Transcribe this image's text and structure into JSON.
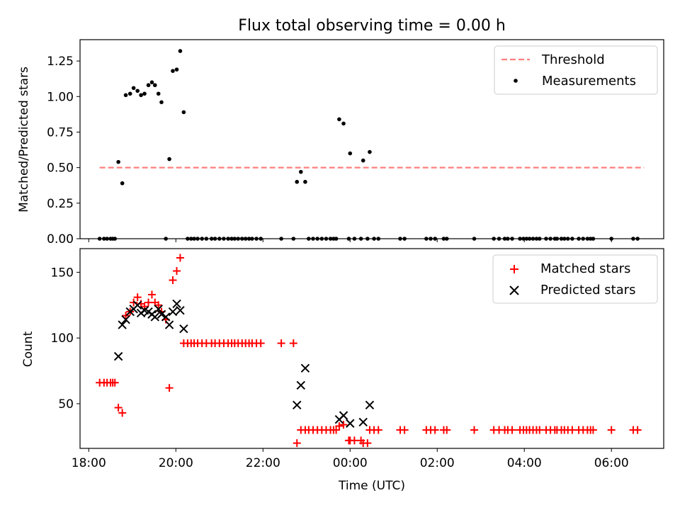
{
  "chart_data": [
    {
      "type": "scatter",
      "title": "Flux total observing time = 0.00 h",
      "xlabel": "",
      "ylabel": "Matched/Predicted stars",
      "x_unit": "hours (UTC, continuing past midnight)",
      "xlim": [
        17.8,
        31.2
      ],
      "ylim": [
        0,
        1.4
      ],
      "yticks": [
        0.0,
        0.25,
        0.5,
        0.75,
        1.0,
        1.25
      ],
      "ytick_labels": [
        "0.00",
        "0.25",
        "0.50",
        "0.75",
        "1.00",
        "1.25"
      ],
      "legend_position": "top-right",
      "series": [
        {
          "name": "Threshold",
          "kind": "line",
          "style": "dashed",
          "color": "#ff7f7f",
          "x": [
            18.25,
            30.75
          ],
          "y": [
            0.5,
            0.5
          ]
        },
        {
          "name": "Measurements",
          "kind": "scatter",
          "marker": "dot",
          "color": "#000000",
          "points": [
            [
              18.25,
              0
            ],
            [
              18.35,
              0
            ],
            [
              18.42,
              0
            ],
            [
              18.5,
              0
            ],
            [
              18.55,
              0
            ],
            [
              18.6,
              0
            ],
            [
              18.68,
              0.54
            ],
            [
              18.77,
              0.39
            ],
            [
              18.85,
              1.01
            ],
            [
              18.95,
              1.02
            ],
            [
              19.03,
              1.06
            ],
            [
              19.12,
              1.04
            ],
            [
              19.2,
              1.01
            ],
            [
              19.28,
              1.02
            ],
            [
              19.37,
              1.08
            ],
            [
              19.45,
              1.1
            ],
            [
              19.52,
              1.08
            ],
            [
              19.6,
              1.02
            ],
            [
              19.67,
              0.96
            ],
            [
              19.77,
              0
            ],
            [
              19.85,
              0.56
            ],
            [
              19.93,
              1.18
            ],
            [
              20.02,
              1.19
            ],
            [
              20.1,
              1.32
            ],
            [
              20.18,
              0.89
            ],
            [
              20.27,
              0
            ],
            [
              20.35,
              0
            ],
            [
              20.42,
              0
            ],
            [
              20.5,
              0
            ],
            [
              20.6,
              0
            ],
            [
              20.7,
              0
            ],
            [
              20.82,
              0
            ],
            [
              20.9,
              0
            ],
            [
              21.0,
              0
            ],
            [
              21.1,
              0
            ],
            [
              21.2,
              0
            ],
            [
              21.28,
              0
            ],
            [
              21.35,
              0
            ],
            [
              21.43,
              0
            ],
            [
              21.52,
              0
            ],
            [
              21.6,
              0
            ],
            [
              21.68,
              0
            ],
            [
              21.75,
              0
            ],
            [
              21.85,
              0
            ],
            [
              21.95,
              0
            ],
            [
              22.42,
              0
            ],
            [
              22.7,
              0
            ],
            [
              22.78,
              0.4
            ],
            [
              22.87,
              0.47
            ],
            [
              22.97,
              0.4
            ],
            [
              23.05,
              0
            ],
            [
              23.15,
              0
            ],
            [
              23.25,
              0
            ],
            [
              23.35,
              0
            ],
            [
              23.45,
              0
            ],
            [
              23.55,
              0
            ],
            [
              23.62,
              0
            ],
            [
              23.68,
              0
            ],
            [
              23.75,
              0.84
            ],
            [
              23.85,
              0.81
            ],
            [
              23.97,
              0
            ],
            [
              24.0,
              0.6
            ],
            [
              24.1,
              0
            ],
            [
              24.25,
              0
            ],
            [
              24.3,
              0.55
            ],
            [
              24.4,
              0
            ],
            [
              24.45,
              0.61
            ],
            [
              24.55,
              0
            ],
            [
              24.65,
              0
            ],
            [
              25.15,
              0
            ],
            [
              25.25,
              0
            ],
            [
              25.75,
              0
            ],
            [
              25.85,
              0
            ],
            [
              25.95,
              0
            ],
            [
              26.15,
              0
            ],
            [
              26.22,
              0
            ],
            [
              26.85,
              0
            ],
            [
              27.3,
              0
            ],
            [
              27.42,
              0
            ],
            [
              27.55,
              0
            ],
            [
              27.62,
              0
            ],
            [
              27.72,
              0
            ],
            [
              27.9,
              0
            ],
            [
              27.98,
              0
            ],
            [
              28.05,
              0
            ],
            [
              28.12,
              0
            ],
            [
              28.2,
              0
            ],
            [
              28.28,
              0
            ],
            [
              28.35,
              0
            ],
            [
              28.5,
              0
            ],
            [
              28.6,
              0
            ],
            [
              28.7,
              0
            ],
            [
              28.75,
              0
            ],
            [
              28.85,
              0
            ],
            [
              28.92,
              0
            ],
            [
              29.0,
              0
            ],
            [
              29.1,
              0
            ],
            [
              29.25,
              0
            ],
            [
              29.35,
              0
            ],
            [
              29.45,
              0
            ],
            [
              29.52,
              0
            ],
            [
              29.58,
              0
            ],
            [
              30.0,
              0
            ],
            [
              30.5,
              0
            ],
            [
              30.6,
              0
            ]
          ]
        }
      ]
    },
    {
      "type": "scatter",
      "title": "",
      "xlabel": "Time (UTC)",
      "ylabel": "Count",
      "xlim": [
        17.8,
        31.2
      ],
      "ylim": [
        16,
        168
      ],
      "xticks": [
        18,
        20,
        22,
        24,
        26,
        28,
        30
      ],
      "xtick_labels": [
        "18:00",
        "20:00",
        "22:00",
        "00:00",
        "02:00",
        "04:00",
        "06:00"
      ],
      "yticks": [
        50,
        100,
        150
      ],
      "ytick_labels": [
        "50",
        "100",
        "150"
      ],
      "legend_position": "top-right",
      "series": [
        {
          "name": "Matched stars",
          "kind": "scatter",
          "marker": "plus",
          "color": "#ff0000",
          "points": [
            [
              18.25,
              66
            ],
            [
              18.35,
              66
            ],
            [
              18.42,
              66
            ],
            [
              18.5,
              66
            ],
            [
              18.55,
              66
            ],
            [
              18.6,
              66
            ],
            [
              18.68,
              47
            ],
            [
              18.77,
              43
            ],
            [
              18.85,
              117
            ],
            [
              18.95,
              120
            ],
            [
              19.03,
              127
            ],
            [
              19.12,
              131
            ],
            [
              19.2,
              126
            ],
            [
              19.28,
              124
            ],
            [
              19.37,
              127
            ],
            [
              19.45,
              133
            ],
            [
              19.52,
              127
            ],
            [
              19.6,
              125
            ],
            [
              19.67,
              120
            ],
            [
              19.77,
              114
            ],
            [
              19.85,
              62
            ],
            [
              19.93,
              144
            ],
            [
              20.02,
              151
            ],
            [
              20.1,
              161
            ],
            [
              20.18,
              96
            ],
            [
              20.27,
              96
            ],
            [
              20.35,
              96
            ],
            [
              20.42,
              96
            ],
            [
              20.5,
              96
            ],
            [
              20.6,
              96
            ],
            [
              20.7,
              96
            ],
            [
              20.82,
              96
            ],
            [
              20.9,
              96
            ],
            [
              21.0,
              96
            ],
            [
              21.1,
              96
            ],
            [
              21.2,
              96
            ],
            [
              21.28,
              96
            ],
            [
              21.35,
              96
            ],
            [
              21.43,
              96
            ],
            [
              21.52,
              96
            ],
            [
              21.6,
              96
            ],
            [
              21.68,
              96
            ],
            [
              21.75,
              96
            ],
            [
              21.85,
              96
            ],
            [
              21.95,
              96
            ],
            [
              22.42,
              96
            ],
            [
              22.7,
              96
            ],
            [
              22.78,
              20
            ],
            [
              22.87,
              30
            ],
            [
              22.97,
              30
            ],
            [
              23.05,
              30
            ],
            [
              23.15,
              30
            ],
            [
              23.25,
              30
            ],
            [
              23.35,
              30
            ],
            [
              23.45,
              30
            ],
            [
              23.55,
              30
            ],
            [
              23.62,
              30
            ],
            [
              23.68,
              30
            ],
            [
              23.75,
              33
            ],
            [
              23.85,
              34
            ],
            [
              23.97,
              22
            ],
            [
              24.0,
              22
            ],
            [
              24.1,
              22
            ],
            [
              24.25,
              22
            ],
            [
              24.3,
              20
            ],
            [
              24.4,
              20
            ],
            [
              24.45,
              30
            ],
            [
              24.55,
              30
            ],
            [
              24.65,
              30
            ],
            [
              25.15,
              30
            ],
            [
              25.25,
              30
            ],
            [
              25.75,
              30
            ],
            [
              25.85,
              30
            ],
            [
              25.95,
              30
            ],
            [
              26.15,
              30
            ],
            [
              26.22,
              30
            ],
            [
              26.85,
              30
            ],
            [
              27.3,
              30
            ],
            [
              27.42,
              30
            ],
            [
              27.55,
              30
            ],
            [
              27.62,
              30
            ],
            [
              27.72,
              30
            ],
            [
              27.9,
              30
            ],
            [
              27.98,
              30
            ],
            [
              28.05,
              30
            ],
            [
              28.12,
              30
            ],
            [
              28.2,
              30
            ],
            [
              28.28,
              30
            ],
            [
              28.35,
              30
            ],
            [
              28.5,
              30
            ],
            [
              28.6,
              30
            ],
            [
              28.7,
              30
            ],
            [
              28.75,
              30
            ],
            [
              28.85,
              30
            ],
            [
              28.92,
              30
            ],
            [
              29.0,
              30
            ],
            [
              29.1,
              30
            ],
            [
              29.25,
              30
            ],
            [
              29.35,
              30
            ],
            [
              29.45,
              30
            ],
            [
              29.52,
              30
            ],
            [
              29.58,
              30
            ],
            [
              30.0,
              30
            ],
            [
              30.5,
              30
            ],
            [
              30.6,
              30
            ]
          ]
        },
        {
          "name": "Predicted stars",
          "kind": "scatter",
          "marker": "x",
          "color": "#000000",
          "points": [
            [
              18.68,
              86
            ],
            [
              18.77,
              110
            ],
            [
              18.85,
              114
            ],
            [
              18.95,
              120
            ],
            [
              19.03,
              122
            ],
            [
              19.12,
              125
            ],
            [
              19.2,
              119
            ],
            [
              19.28,
              121
            ],
            [
              19.37,
              120
            ],
            [
              19.45,
              118
            ],
            [
              19.52,
              116
            ],
            [
              19.6,
              122
            ],
            [
              19.67,
              118
            ],
            [
              19.77,
              116
            ],
            [
              19.85,
              110
            ],
            [
              19.93,
              120
            ],
            [
              20.02,
              126
            ],
            [
              20.1,
              121
            ],
            [
              20.18,
              107
            ],
            [
              22.78,
              49
            ],
            [
              22.87,
              64
            ],
            [
              22.97,
              77
            ],
            [
              23.75,
              38
            ],
            [
              23.85,
              41
            ],
            [
              24.0,
              35
            ],
            [
              24.3,
              36
            ],
            [
              24.45,
              49
            ]
          ]
        }
      ]
    }
  ]
}
